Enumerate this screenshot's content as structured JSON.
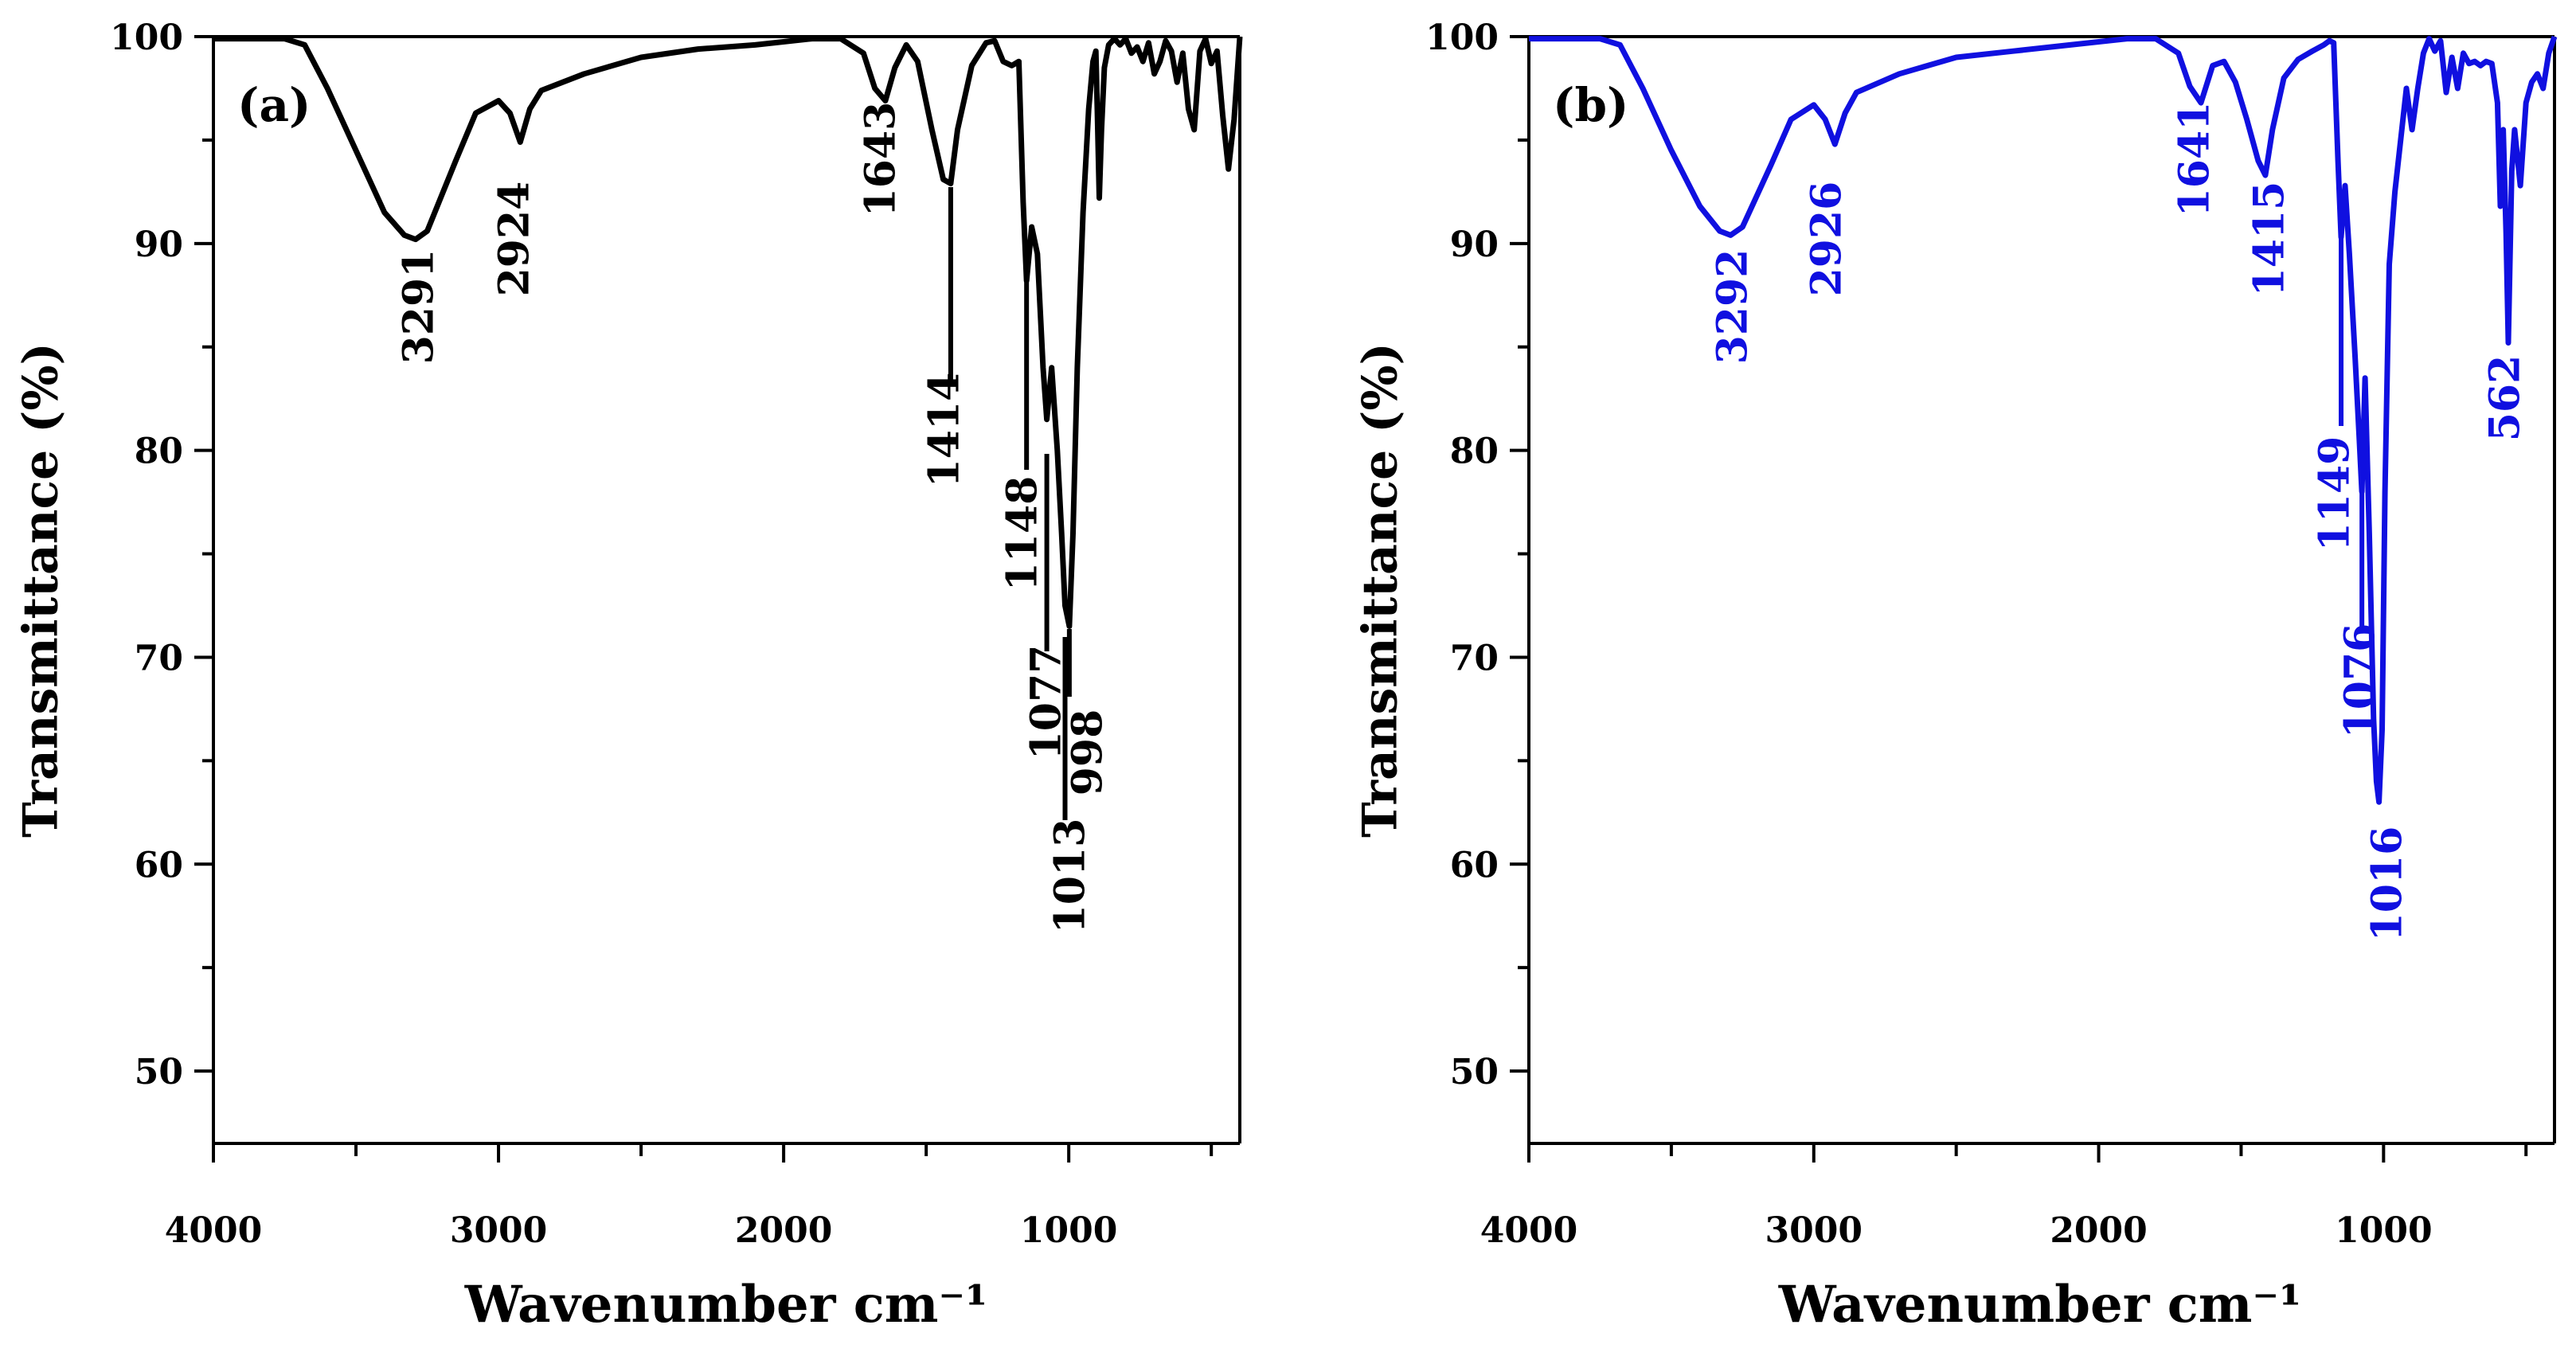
{
  "chart_data": [
    {
      "type": "line",
      "panel_label": "(a)",
      "xlabel": "Wavenumber cm⁻¹",
      "ylabel": "Transmittance (%)",
      "xlim": [
        4000,
        400
      ],
      "ylim": [
        46.5,
        100
      ],
      "x_ticks": [
        4000,
        3000,
        2000,
        1000
      ],
      "x_tick_labels": [
        "4000",
        "3000",
        "2000",
        "1000"
      ],
      "y_ticks": [
        50,
        60,
        70,
        80,
        90,
        100
      ],
      "y_tick_labels": [
        "50",
        "60",
        "70",
        "80",
        "90",
        "100"
      ],
      "color": "#000000",
      "series": [
        {
          "name": "(a)",
          "x": [
            4000,
            3750,
            3680,
            3600,
            3500,
            3400,
            3330,
            3291,
            3250,
            3150,
            3080,
            3000,
            2960,
            2924,
            2890,
            2850,
            2700,
            2500,
            2300,
            2100,
            1900,
            1800,
            1720,
            1680,
            1643,
            1610,
            1570,
            1530,
            1480,
            1440,
            1414,
            1390,
            1340,
            1290,
            1260,
            1230,
            1200,
            1175,
            1160,
            1148,
            1130,
            1110,
            1090,
            1077,
            1060,
            1040,
            1025,
            1013,
            998,
            985,
            970,
            950,
            930,
            915,
            905,
            900,
            893,
            885,
            875,
            860,
            840,
            820,
            800,
            780,
            760,
            740,
            720,
            700,
            680,
            660,
            640,
            620,
            600,
            580,
            560,
            540,
            520,
            500,
            480,
            460,
            440,
            420,
            400
          ],
          "y": [
            99.9,
            99.9,
            99.6,
            97.5,
            94.5,
            91.5,
            90.4,
            90.2,
            90.6,
            94,
            96.3,
            96.9,
            96.3,
            94.9,
            96.5,
            97.4,
            98.2,
            99.0,
            99.4,
            99.6,
            99.9,
            99.9,
            99.2,
            97.5,
            96.9,
            98.5,
            99.6,
            98.8,
            95.5,
            93.1,
            92.9,
            95.5,
            98.6,
            99.7,
            99.8,
            98.8,
            98.6,
            98.8,
            92,
            88.2,
            90.8,
            89.5,
            84,
            81.5,
            84,
            80,
            76,
            72.5,
            71.5,
            76,
            84,
            91.5,
            96.5,
            98.8,
            99.3,
            96.5,
            92.2,
            95.5,
            98.5,
            99.6,
            99.9,
            99.6,
            99.9,
            99.2,
            99.5,
            98.8,
            99.7,
            98.2,
            98.8,
            99.8,
            99.3,
            97.8,
            99.2,
            96.5,
            95.5,
            99.3,
            99.9,
            98.7,
            99.3,
            96.2,
            93.6,
            96,
            100
          ]
        }
      ],
      "annotations": [
        {
          "text": "3291",
          "x": 3291,
          "y": 90.2
        },
        {
          "text": "2924",
          "x": 2924,
          "y": 94.9
        },
        {
          "text": "1643",
          "x": 1643,
          "y": 96.9
        },
        {
          "text": "1414",
          "x": 1414,
          "y": 92.9
        },
        {
          "text": "1148",
          "x": 1148,
          "y": 88.2
        },
        {
          "text": "1077",
          "x": 1077,
          "y": 81.5
        },
        {
          "text": "1013",
          "x": 1013,
          "y": 72.5
        },
        {
          "text": "998",
          "x": 998,
          "y": 71.5
        }
      ]
    },
    {
      "type": "line",
      "panel_label": "(b)",
      "xlabel": "Wavenumber cm⁻¹",
      "ylabel": "Transmittance (%)",
      "xlim": [
        4000,
        400
      ],
      "ylim": [
        46.5,
        100
      ],
      "x_ticks": [
        4000,
        3000,
        2000,
        1000
      ],
      "x_tick_labels": [
        "4000",
        "3000",
        "2000",
        "1000"
      ],
      "y_ticks": [
        50,
        60,
        70,
        80,
        90,
        100
      ],
      "y_tick_labels": [
        "50",
        "60",
        "70",
        "80",
        "90",
        "100"
      ],
      "color": "#1010e0",
      "series": [
        {
          "name": "(b)",
          "x": [
            4000,
            3750,
            3680,
            3600,
            3500,
            3400,
            3330,
            3292,
            3250,
            3150,
            3080,
            3000,
            2960,
            2926,
            2890,
            2850,
            2700,
            2500,
            2300,
            2100,
            1900,
            1800,
            1720,
            1680,
            1641,
            1600,
            1560,
            1520,
            1480,
            1440,
            1415,
            1390,
            1350,
            1300,
            1250,
            1210,
            1190,
            1175,
            1160,
            1149,
            1135,
            1120,
            1100,
            1085,
            1076,
            1065,
            1050,
            1035,
            1025,
            1016,
            1005,
            995,
            980,
            960,
            940,
            920,
            900,
            880,
            860,
            840,
            820,
            800,
            780,
            760,
            740,
            720,
            700,
            680,
            660,
            640,
            620,
            600,
            590,
            580,
            570,
            562,
            550,
            540,
            520,
            500,
            480,
            460,
            440,
            420,
            400
          ],
          "y": [
            99.9,
            99.9,
            99.6,
            97.5,
            94.5,
            91.8,
            90.6,
            90.4,
            90.8,
            93.8,
            96,
            96.7,
            96.0,
            94.8,
            96.3,
            97.3,
            98.2,
            99.0,
            99.3,
            99.6,
            99.9,
            99.9,
            99.2,
            97.6,
            96.8,
            98.6,
            98.8,
            97.8,
            96.0,
            94.0,
            93.3,
            95.5,
            98.0,
            98.9,
            99.3,
            99.6,
            99.8,
            99.7,
            94,
            90.3,
            92.8,
            89.5,
            84.5,
            80.5,
            78,
            83.5,
            76,
            67,
            64,
            63,
            66.5,
            78,
            89,
            92.5,
            95,
            97.5,
            95.5,
            97.5,
            99.2,
            99.9,
            99.3,
            99.8,
            97.3,
            99.0,
            97.5,
            99.2,
            98.7,
            98.8,
            98.6,
            98.8,
            98.7,
            96.8,
            91.8,
            95.5,
            90.5,
            85.2,
            93.5,
            95.5,
            92.8,
            96.8,
            97.8,
            98.2,
            97.5,
            99.2,
            100
          ]
        }
      ],
      "annotations": [
        {
          "text": "3292",
          "x": 3292,
          "y": 90.4
        },
        {
          "text": "2926",
          "x": 2926,
          "y": 94.8
        },
        {
          "text": "1641",
          "x": 1641,
          "y": 96.8
        },
        {
          "text": "1415",
          "x": 1415,
          "y": 93.3
        },
        {
          "text": "1149",
          "x": 1149,
          "y": 90.3
        },
        {
          "text": "1076",
          "x": 1076,
          "y": 78
        },
        {
          "text": "1016",
          "x": 1016,
          "y": 63
        },
        {
          "text": "562",
          "x": 562,
          "y": 85.2
        }
      ]
    }
  ]
}
